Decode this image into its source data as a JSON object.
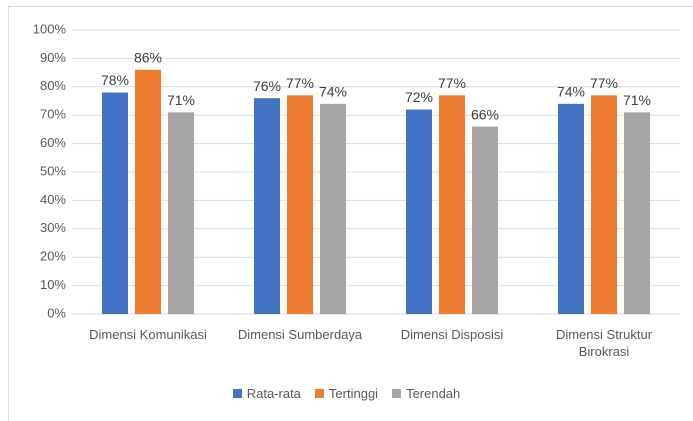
{
  "chart_data": {
    "type": "bar",
    "categories": [
      "Dimensi Komunikasi",
      "Dimensi Sumberdaya",
      "Dimensi Disposisi",
      "Dimensi Struktur Birokrasi"
    ],
    "series": [
      {
        "name": "Rata-rata",
        "color": "#4472c4",
        "values": [
          78,
          76,
          72,
          74
        ],
        "value_labels": [
          "78%",
          "76%",
          "72%",
          "74%"
        ]
      },
      {
        "name": "Tertinggi",
        "color": "#ed7d31",
        "values": [
          86,
          77,
          77,
          77
        ],
        "value_labels": [
          "86%",
          "77%",
          "77%",
          "77%"
        ]
      },
      {
        "name": "Terendah",
        "color": "#a5a5a5",
        "values": [
          71,
          74,
          66,
          71
        ],
        "value_labels": [
          "71%",
          "74%",
          "66%",
          "71%"
        ]
      }
    ],
    "ylim": [
      0,
      100
    ],
    "yticks": [
      {
        "value": 0,
        "label": "0%"
      },
      {
        "value": 10,
        "label": "10%"
      },
      {
        "value": 20,
        "label": "20%"
      },
      {
        "value": 30,
        "label": "30%"
      },
      {
        "value": 40,
        "label": "40%"
      },
      {
        "value": 50,
        "label": "50%"
      },
      {
        "value": 60,
        "label": "60%"
      },
      {
        "value": 70,
        "label": "70%"
      },
      {
        "value": 80,
        "label": "80%"
      },
      {
        "value": 90,
        "label": "90%"
      },
      {
        "value": 100,
        "label": "100%"
      }
    ],
    "grid": true,
    "legend": "bottom"
  }
}
